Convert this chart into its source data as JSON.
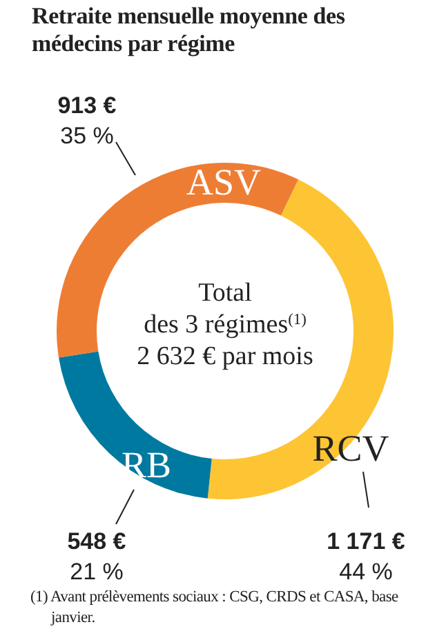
{
  "chart_data": {
    "type": "donut",
    "title": "Retraite mensuelle moyenne des médecins par régime",
    "categories": [
      "RCV",
      "RB",
      "ASV"
    ],
    "values": [
      1171,
      548,
      913
    ],
    "colors": [
      "#fdc533",
      "#0079a0",
      "#ee7d34"
    ],
    "value_labels": [
      "1 171 €",
      "548 €",
      "913 €"
    ],
    "annotations": [
      {
        "text": "44 %",
        "x": "RCV"
      },
      {
        "text": "21 %",
        "x": "RB"
      },
      {
        "text": "35 %",
        "x": "ASV"
      },
      "Total",
      "des 3 régimes$^{(1)}$",
      "2 632 € par mois",
      "(1) Avant prélèvements sociaux : CSG, CRDS et CASA, base janvier."
    ]
  }
}
